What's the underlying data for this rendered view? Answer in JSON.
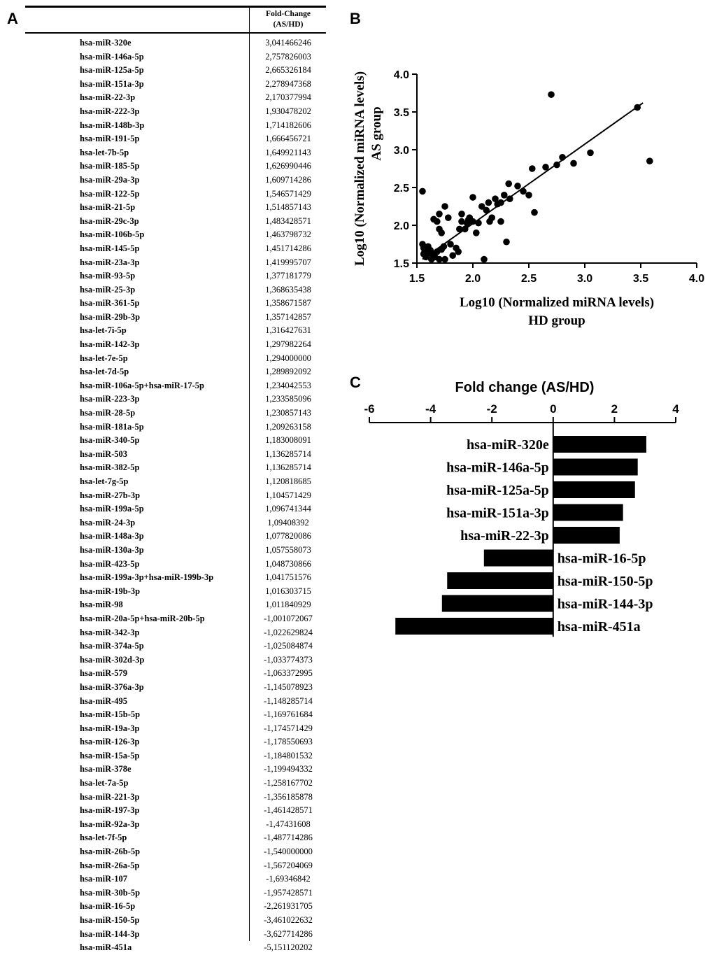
{
  "panels": {
    "a": "A",
    "b": "B",
    "c": "C"
  },
  "table": {
    "header_line1": "Fold-Change",
    "header_line2": "(AS/HD)",
    "rows": [
      {
        "name": "hsa-miR-320e",
        "value": "3,041466246"
      },
      {
        "name": "hsa-miR-146a-5p",
        "value": "2,757826003"
      },
      {
        "name": "hsa-miR-125a-5p",
        "value": "2,665326184"
      },
      {
        "name": "hsa-miR-151a-3p",
        "value": "2,278947368"
      },
      {
        "name": "hsa-miR-22-3p",
        "value": "2,170377994"
      },
      {
        "name": "hsa-miR-222-3p",
        "value": "1,930478202"
      },
      {
        "name": "hsa-miR-148b-3p",
        "value": "1,714182606"
      },
      {
        "name": "hsa-miR-191-5p",
        "value": "1,666456721"
      },
      {
        "name": "hsa-let-7b-5p",
        "value": "1,649921143"
      },
      {
        "name": "hsa-miR-185-5p",
        "value": "1,626990446"
      },
      {
        "name": "hsa-miR-29a-3p",
        "value": "1,609714286"
      },
      {
        "name": "hsa-miR-122-5p",
        "value": "1,546571429"
      },
      {
        "name": "hsa-miR-21-5p",
        "value": "1,514857143"
      },
      {
        "name": "hsa-miR-29c-3p",
        "value": "1,483428571"
      },
      {
        "name": "hsa-miR-106b-5p",
        "value": "1,463798732"
      },
      {
        "name": "hsa-miR-145-5p",
        "value": "1,451714286"
      },
      {
        "name": "hsa-miR-23a-3p",
        "value": "1,419995707"
      },
      {
        "name": "hsa-miR-93-5p",
        "value": "1,377181779"
      },
      {
        "name": "hsa-miR-25-3p",
        "value": "1,368635438"
      },
      {
        "name": "hsa-miR-361-5p",
        "value": "1,358671587"
      },
      {
        "name": "hsa-miR-29b-3p",
        "value": "1,357142857"
      },
      {
        "name": "hsa-let-7i-5p",
        "value": "1,316427631"
      },
      {
        "name": "hsa-miR-142-3p",
        "value": "1,297982264"
      },
      {
        "name": "hsa-let-7e-5p",
        "value": "1,294000000"
      },
      {
        "name": "hsa-let-7d-5p",
        "value": "1,289892092"
      },
      {
        "name": "hsa-miR-106a-5p+hsa-miR-17-5p",
        "value": "1,234042553"
      },
      {
        "name": "hsa-miR-223-3p",
        "value": "1,233585096"
      },
      {
        "name": "hsa-miR-28-5p",
        "value": "1,230857143"
      },
      {
        "name": "hsa-miR-181a-5p",
        "value": "1,209263158"
      },
      {
        "name": "hsa-miR-340-5p",
        "value": "1,183008091"
      },
      {
        "name": "hsa-miR-503",
        "value": "1,136285714"
      },
      {
        "name": "hsa-miR-382-5p",
        "value": "1,136285714"
      },
      {
        "name": "hsa-let-7g-5p",
        "value": "1,120818685"
      },
      {
        "name": "hsa-miR-27b-3p",
        "value": "1,104571429"
      },
      {
        "name": "hsa-miR-199a-5p",
        "value": "1,096741344"
      },
      {
        "name": "hsa-miR-24-3p",
        "value": "1,09408392"
      },
      {
        "name": "hsa-miR-148a-3p",
        "value": "1,077820086"
      },
      {
        "name": "hsa-miR-130a-3p",
        "value": "1,057558073"
      },
      {
        "name": "hsa-miR-423-5p",
        "value": "1,048730866"
      },
      {
        "name": "hsa-miR-199a-3p+hsa-miR-199b-3p",
        "value": "1,041751576"
      },
      {
        "name": "hsa-miR-19b-3p",
        "value": "1,016303715"
      },
      {
        "name": "hsa-miR-98",
        "value": "1,011840929"
      },
      {
        "name": "hsa-miR-20a-5p+hsa-miR-20b-5p",
        "value": "-1,001072067"
      },
      {
        "name": "hsa-miR-342-3p",
        "value": "-1,022629824"
      },
      {
        "name": "hsa-miR-374a-5p",
        "value": "-1,025084874"
      },
      {
        "name": "hsa-miR-302d-3p",
        "value": "-1,033774373"
      },
      {
        "name": "hsa-miR-579",
        "value": "-1,063372995"
      },
      {
        "name": "hsa-miR-376a-3p",
        "value": "-1,145078923"
      },
      {
        "name": "hsa-miR-495",
        "value": "-1,148285714"
      },
      {
        "name": "hsa-miR-15b-5p",
        "value": "-1,169761684"
      },
      {
        "name": "hsa-miR-19a-3p",
        "value": "-1,174571429"
      },
      {
        "name": "hsa-miR-126-3p",
        "value": "-1,178550693"
      },
      {
        "name": "hsa-miR-15a-5p",
        "value": "-1,184801532"
      },
      {
        "name": "hsa-miR-378e",
        "value": "-1,199494332"
      },
      {
        "name": "hsa-let-7a-5p",
        "value": "-1,258167702"
      },
      {
        "name": "hsa-miR-221-3p",
        "value": "-1,356185878"
      },
      {
        "name": "hsa-miR-197-3p",
        "value": "-1,461428571"
      },
      {
        "name": "hsa-miR-92a-3p",
        "value": "-1,47431608"
      },
      {
        "name": "hsa-let-7f-5p",
        "value": "-1,487714286"
      },
      {
        "name": "hsa-miR-26b-5p",
        "value": "-1,540000000"
      },
      {
        "name": "hsa-miR-26a-5p",
        "value": "-1,567204069"
      },
      {
        "name": "hsa-miR-107",
        "value": "-1,69346842"
      },
      {
        "name": "hsa-miR-30b-5p",
        "value": "-1,957428571"
      },
      {
        "name": "hsa-miR-16-5p",
        "value": "-2,261931705"
      },
      {
        "name": "hsa-miR-150-5p",
        "value": "-3,461022632"
      },
      {
        "name": "hsa-miR-144-3p",
        "value": "-3,627714286"
      },
      {
        "name": "hsa-miR-451a",
        "value": "-5,151120202"
      }
    ]
  },
  "chart_data": [
    {
      "type": "scatter",
      "title": "",
      "xlabel": "Log10 (Normalized miRNA levels) HD group",
      "xlabel_lines": [
        "Log10 (Normalized miRNA levels)",
        "HD group"
      ],
      "ylabel": "Log10 (Normalized miRNA levels) AS group",
      "ylabel_lines": [
        "Log10 (Normalized miRNA levels)",
        "AS group"
      ],
      "xlim": [
        1.5,
        4.0
      ],
      "ylim": [
        1.5,
        4.0
      ],
      "xticks": [
        "1.5",
        "2.0",
        "2.5",
        "3.0",
        "3.5",
        "4.0"
      ],
      "yticks": [
        "1.5",
        "2.0",
        "2.5",
        "3.0",
        "3.5",
        "4.0"
      ],
      "grid": false,
      "fit_line": [
        [
          1.55,
          1.55
        ],
        [
          3.52,
          3.62
        ]
      ],
      "points": [
        [
          1.55,
          2.45
        ],
        [
          1.55,
          1.75
        ],
        [
          1.56,
          1.7
        ],
        [
          1.57,
          1.65
        ],
        [
          1.58,
          1.6
        ],
        [
          1.56,
          1.62
        ],
        [
          1.6,
          1.72
        ],
        [
          1.62,
          1.67
        ],
        [
          1.65,
          1.6
        ],
        [
          1.63,
          1.55
        ],
        [
          1.68,
          1.65
        ],
        [
          1.7,
          1.55
        ],
        [
          1.72,
          1.68
        ],
        [
          1.75,
          1.55
        ],
        [
          1.65,
          2.08
        ],
        [
          1.68,
          2.05
        ],
        [
          1.7,
          1.95
        ],
        [
          1.72,
          1.9
        ],
        [
          1.7,
          2.15
        ],
        [
          1.75,
          2.25
        ],
        [
          1.78,
          2.1
        ],
        [
          1.8,
          1.75
        ],
        [
          1.82,
          1.6
        ],
        [
          1.85,
          1.7
        ],
        [
          1.87,
          1.65
        ],
        [
          1.88,
          1.95
        ],
        [
          1.9,
          2.15
        ],
        [
          1.9,
          2.05
        ],
        [
          1.93,
          1.95
        ],
        [
          1.95,
          2.02
        ],
        [
          1.97,
          2.1
        ],
        [
          2.0,
          2.05
        ],
        [
          2.0,
          2.37
        ],
        [
          2.03,
          1.9
        ],
        [
          2.05,
          2.03
        ],
        [
          2.08,
          2.25
        ],
        [
          2.1,
          1.55
        ],
        [
          2.12,
          2.2
        ],
        [
          2.15,
          2.05
        ],
        [
          2.17,
          2.1
        ],
        [
          2.2,
          2.35
        ],
        [
          2.22,
          2.28
        ],
        [
          2.25,
          2.3
        ],
        [
          2.25,
          2.05
        ],
        [
          2.28,
          2.4
        ],
        [
          2.3,
          1.78
        ],
        [
          2.32,
          2.55
        ],
        [
          2.33,
          2.35
        ],
        [
          2.45,
          2.45
        ],
        [
          2.5,
          2.4
        ],
        [
          2.53,
          2.75
        ],
        [
          2.55,
          2.17
        ],
        [
          2.65,
          2.77
        ],
        [
          2.7,
          3.73
        ],
        [
          2.75,
          2.8
        ],
        [
          2.8,
          2.9
        ],
        [
          2.9,
          2.82
        ],
        [
          3.05,
          2.96
        ],
        [
          3.47,
          3.56
        ],
        [
          3.58,
          2.85
        ],
        [
          1.58,
          1.58
        ],
        [
          1.62,
          1.63
        ],
        [
          1.66,
          1.58
        ],
        [
          1.74,
          1.72
        ],
        [
          1.96,
          2.07
        ],
        [
          2.14,
          2.3
        ],
        [
          2.4,
          2.52
        ]
      ]
    },
    {
      "type": "bar",
      "orientation": "horizontal",
      "title": "Fold change (AS/HD)",
      "xlim": [
        -6,
        4
      ],
      "xticks": [
        "-6",
        "-4",
        "-2",
        "0",
        "2",
        "4"
      ],
      "axis_position": "top",
      "categories": [
        "hsa-miR-320e",
        "hsa-miR-146a-5p",
        "hsa-miR-125a-5p",
        "hsa-miR-151a-3p",
        "hsa-miR-22-3p",
        "hsa-miR-16-5p",
        "hsa-miR-150-5p",
        "hsa-miR-144-3p",
        "hsa-miR-451a"
      ],
      "values": [
        3.04,
        2.76,
        2.67,
        2.28,
        2.17,
        -2.26,
        -3.46,
        -3.63,
        -5.15
      ],
      "bar_color": "#000000"
    }
  ]
}
